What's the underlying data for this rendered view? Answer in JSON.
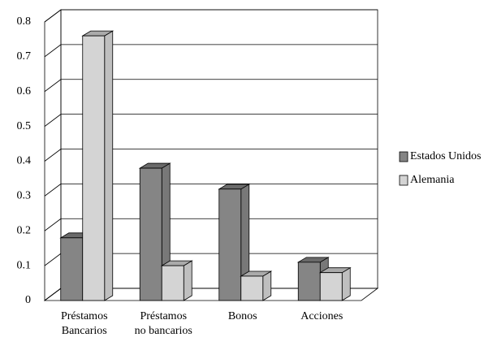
{
  "chart_data": {
    "type": "bar3d",
    "categories": [
      "Préstamos\nBancarios",
      "Préstamos\nno bancarios",
      "Bonos",
      "Acciones"
    ],
    "series": [
      {
        "name": "Estados Unidos",
        "color": "#858585",
        "values": [
          0.18,
          0.38,
          0.32,
          0.11
        ]
      },
      {
        "name": "Alemania",
        "color": "#d4d4d4",
        "values": [
          0.76,
          0.1,
          0.07,
          0.08
        ]
      }
    ],
    "ylim": [
      0,
      0.8
    ],
    "yticks": [
      0,
      0.1,
      0.2,
      0.3,
      0.4,
      0.5,
      0.6,
      0.7,
      0.8
    ],
    "grid": true,
    "legend": "right"
  }
}
